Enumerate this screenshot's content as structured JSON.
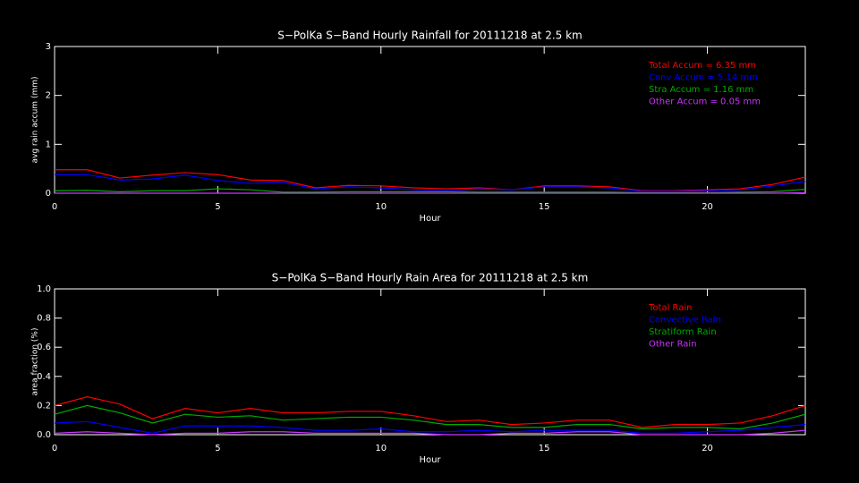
{
  "chart_data": [
    {
      "type": "line",
      "title": "S−PolKa S−Band Hourly Rainfall for 20111218 at 2.5 km",
      "x_label": "Hour",
      "y_label": "avg rain accum (mm)",
      "x": [
        0,
        1,
        2,
        3,
        4,
        5,
        6,
        7,
        8,
        9,
        10,
        11,
        12,
        13,
        14,
        15,
        16,
        17,
        18,
        19,
        20,
        21,
        22,
        23
      ],
      "xlim": [
        0,
        23
      ],
      "xticks": [
        0,
        5,
        10,
        15,
        20
      ],
      "ylim": [
        0,
        3
      ],
      "yticks": [
        0,
        1,
        2,
        3
      ],
      "legend": "top right",
      "series": [
        {
          "name": "Total Accum = 6.35 mm",
          "color": "#ff0000",
          "values": [
            0.48,
            0.48,
            0.31,
            0.37,
            0.42,
            0.38,
            0.27,
            0.26,
            0.11,
            0.16,
            0.15,
            0.11,
            0.09,
            0.11,
            0.07,
            0.15,
            0.15,
            0.13,
            0.05,
            0.05,
            0.07,
            0.09,
            0.18,
            0.33
          ]
        },
        {
          "name": "Conv Accum = 5.14 mm",
          "color": "#0000ff",
          "values": [
            0.38,
            0.38,
            0.27,
            0.29,
            0.37,
            0.26,
            0.2,
            0.22,
            0.09,
            0.13,
            0.11,
            0.07,
            0.05,
            0.09,
            0.07,
            0.13,
            0.13,
            0.11,
            0.04,
            0.04,
            0.05,
            0.07,
            0.15,
            0.24
          ]
        },
        {
          "name": "Stra Accum = 1.16 mm",
          "color": "#00aa00",
          "values": [
            0.05,
            0.06,
            0.03,
            0.05,
            0.05,
            0.09,
            0.07,
            0.02,
            0.02,
            0.03,
            0.03,
            0.03,
            0.03,
            0.02,
            0.02,
            0.02,
            0.02,
            0.02,
            0.01,
            0.01,
            0.01,
            0.02,
            0.03,
            0.08
          ]
        },
        {
          "name": "Other Accum = 0.05 mm",
          "color": "#cc33ff",
          "values": [
            0,
            0,
            0,
            0,
            0,
            0,
            0,
            0,
            0,
            0,
            0,
            0,
            0,
            0,
            0,
            0,
            0,
            0,
            0,
            0,
            0,
            0,
            0,
            0.01
          ]
        }
      ]
    },
    {
      "type": "line",
      "title": "S−PolKa S−Band Hourly Rain Area for 20111218 at 2.5 km",
      "x_label": "Hour",
      "y_label": "area fraction (%)",
      "x": [
        0,
        1,
        2,
        3,
        4,
        5,
        6,
        7,
        8,
        9,
        10,
        11,
        12,
        13,
        14,
        15,
        16,
        17,
        18,
        19,
        20,
        21,
        22,
        23
      ],
      "xlim": [
        0,
        23
      ],
      "xticks": [
        0,
        5,
        10,
        15,
        20
      ],
      "ylim": [
        0,
        1
      ],
      "yticks": [
        {
          "value": 0,
          "label": "0.0"
        },
        {
          "value": 0.2,
          "label": "0.2"
        },
        {
          "value": 0.4,
          "label": "0.4"
        },
        {
          "value": 0.6,
          "label": "0.6"
        },
        {
          "value": 0.8,
          "label": "0.8"
        },
        {
          "value": 1,
          "label": "1.0"
        }
      ],
      "legend": "top right",
      "series": [
        {
          "name": "Total Rain",
          "color": "#ff0000",
          "values": [
            0.2,
            0.26,
            0.21,
            0.11,
            0.18,
            0.15,
            0.18,
            0.15,
            0.15,
            0.16,
            0.16,
            0.13,
            0.09,
            0.1,
            0.07,
            0.08,
            0.1,
            0.1,
            0.05,
            0.07,
            0.07,
            0.08,
            0.13,
            0.2
          ]
        },
        {
          "name": "Convective Rain",
          "color": "#0000ff",
          "values": [
            0.08,
            0.09,
            0.05,
            0.01,
            0.06,
            0.06,
            0.06,
            0.05,
            0.03,
            0.03,
            0.04,
            0.02,
            0.02,
            0.03,
            0.02,
            0.03,
            0.03,
            0.03,
            0.01,
            0.01,
            0.02,
            0.03,
            0.05,
            0.07
          ]
        },
        {
          "name": "Stratiform Rain",
          "color": "#00aa00",
          "values": [
            0.14,
            0.2,
            0.15,
            0.08,
            0.14,
            0.12,
            0.13,
            0.1,
            0.11,
            0.12,
            0.12,
            0.1,
            0.07,
            0.07,
            0.05,
            0.05,
            0.07,
            0.07,
            0.04,
            0.05,
            0.05,
            0.04,
            0.08,
            0.14
          ]
        },
        {
          "name": "Other Rain",
          "color": "#cc33ff",
          "values": [
            0.01,
            0.02,
            0.01,
            0,
            0.01,
            0.01,
            0.02,
            0.02,
            0.01,
            0.01,
            0.01,
            0.01,
            0,
            0,
            0.01,
            0.01,
            0.02,
            0.02,
            0,
            0,
            0,
            0,
            0.01,
            0.03
          ]
        }
      ]
    }
  ]
}
